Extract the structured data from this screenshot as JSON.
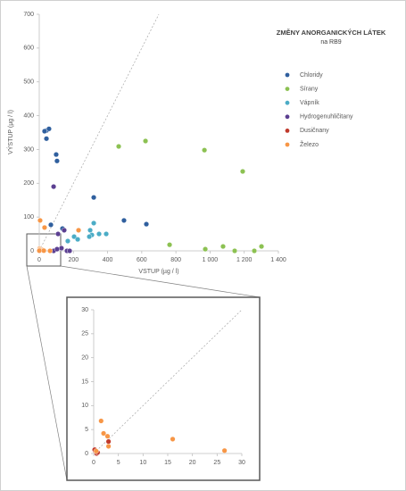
{
  "chart_data": {
    "type": "scatter",
    "title": "ZMĚNY ANORGANICKÝCH LÁTEK",
    "subtitle": "na RB9",
    "x_label": "VSTUP (µg / l)",
    "y_label": "VÝSTUP (µg / l)",
    "xlim": [
      0,
      1400
    ],
    "ylim": [
      0,
      700
    ],
    "xticks": [
      0,
      200,
      400,
      600,
      800,
      {
        "value": 1000,
        "label": "1 000"
      },
      {
        "value": 1200,
        "label": "1 200"
      },
      {
        "value": 1400,
        "label": "1 400"
      }
    ],
    "yticks": [
      0,
      100,
      200,
      300,
      400,
      500,
      600,
      700
    ],
    "diagonal": true,
    "legend": "right",
    "series": [
      {
        "name": "Chloridy",
        "color": "#2f5f9e",
        "x": [
          42,
          57,
          31,
          42,
          99,
          104,
          319,
          496,
          627,
          68,
          136
        ],
        "y": [
          356,
          361,
          354,
          332,
          285,
          266,
          158,
          90,
          79,
          77,
          66
        ]
      },
      {
        "name": "Sírany",
        "color": "#8cc152",
        "x": [
          465,
          622,
          967,
          1191,
          763,
          972,
          1076,
          1144,
          1259,
          1301
        ],
        "y": [
          309,
          325,
          298,
          235,
          18,
          5,
          13,
          0,
          0,
          13
        ]
      },
      {
        "name": "Vápník",
        "color": "#4bacc6",
        "x": [
          319,
          298,
          308,
          350,
          392,
          293,
          204,
          225,
          167
        ],
        "y": [
          82,
          61,
          47,
          50,
          50,
          42,
          42,
          34,
          29
        ]
      },
      {
        "name": "Hydrogenuhličitany",
        "color": "#5b3f91",
        "x": [
          84,
          146,
          110,
          130,
          162,
          178,
          84,
          104
        ],
        "y": [
          190,
          61,
          50,
          8,
          0,
          0,
          0,
          5
        ]
      },
      {
        "name": "Dusičnany",
        "color": "#c0392b",
        "x": [
          0.3,
          0.5,
          0.2,
          0.6,
          3,
          0.8
        ],
        "y": [
          0.5,
          0.3,
          0.8,
          0,
          2.5,
          0.2
        ]
      },
      {
        "name": "Železo",
        "color": "#f79646",
        "x": [
          5,
          31,
          16,
          230,
          63,
          1.5,
          2,
          2.8,
          3,
          26.5,
          0.5
        ],
        "y": [
          90,
          69,
          3,
          61,
          0,
          6.8,
          4.2,
          3.6,
          1.5,
          0.6,
          0.5
        ]
      }
    ],
    "inset": {
      "xlim": [
        0,
        30
      ],
      "ylim": [
        0,
        30
      ],
      "xticks": [
        0,
        5,
        10,
        15,
        20,
        25,
        30
      ],
      "yticks": [
        0,
        5,
        10,
        15,
        20,
        25,
        30
      ]
    }
  }
}
